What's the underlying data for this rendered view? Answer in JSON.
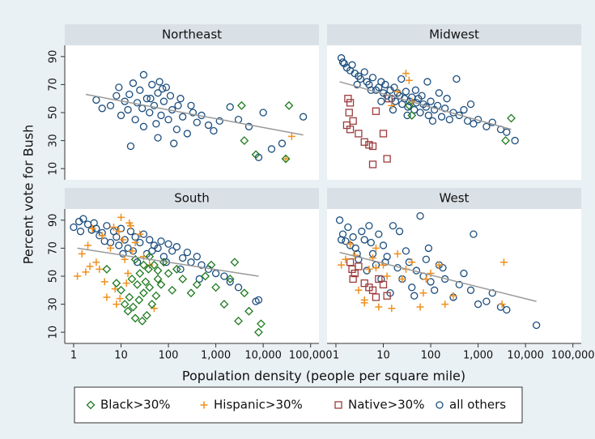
{
  "chart_data": {
    "type": "scatter",
    "ylabel": "Percent vote for Bush",
    "xlabel": "Population density (people per square mile)",
    "log_x": true,
    "xlim": [
      0.65,
      150000
    ],
    "xticks": [
      1,
      10,
      100,
      {
        "value": 1000,
        "label": "1,000"
      },
      {
        "value": 10000,
        "label": "10,000"
      },
      {
        "value": 100000,
        "label": "100,000"
      }
    ],
    "ylim": [
      2,
      98
    ],
    "yticks": [
      10,
      30,
      50,
      70,
      90
    ],
    "fit_color": "#999999",
    "series": [
      {
        "name": "Black>30%",
        "color": "#1e7a1e",
        "marker": "diamond"
      },
      {
        "name": "Hispanic>30%",
        "color": "#f0901e",
        "marker": "plus"
      },
      {
        "name": "Native>30%",
        "color": "#9c3b3b",
        "marker": "square"
      },
      {
        "name": "all others",
        "color": "#1c4e7e",
        "marker": "circle"
      }
    ],
    "panels": [
      {
        "title": "Northeast",
        "series": [
          {
            "x": [
              3500,
              4000,
              7000,
              35000,
              30000
            ],
            "y": [
              55,
              30,
              20,
              55,
              17
            ]
          },
          {
            "x": [
              40000,
              30000
            ],
            "y": [
              33,
              17
            ]
          },
          {
            "x": [],
            "y": []
          },
          {
            "x": [
              3,
              4,
              6,
              8,
              9,
              10,
              12,
              14,
              15,
              18,
              20,
              22,
              25,
              30,
              35,
              40,
              45,
              50,
              55,
              60,
              70,
              80,
              90,
              100,
              120,
              150,
              180,
              200,
              250,
              300,
              400,
              500,
              700,
              900,
              1200,
              2000,
              3000,
              8000,
              15000,
              25000,
              70000,
              10000,
              5000,
              60,
              130,
              30,
              28,
              65,
              110,
              75,
              16,
              42,
              160,
              330
            ],
            "y": [
              59,
              53,
              55,
              62,
              68,
              48,
              58,
              52,
              63,
              71,
              45,
              57,
              66,
              77,
              60,
              50,
              70,
              55,
              42,
              64,
              48,
              58,
              68,
              45,
              52,
              38,
              60,
              47,
              35,
              55,
              43,
              48,
              41,
              37,
              44,
              54,
              45,
              18,
              24,
              28,
              47,
              50,
              40,
              32,
              28,
              40,
              53,
              72,
              62,
              67,
              26,
              60,
              55,
              50
            ]
          }
        ],
        "fit": {
          "x": [
            1.8,
            70000
          ],
          "y": [
            63,
            34
          ]
        }
      },
      {
        "title": "Midwest",
        "series": [
          {
            "x": [
              35,
              40,
              5000,
              3800
            ],
            "y": [
              55,
              48,
              46,
              30
            ]
          },
          {
            "x": [
              30,
              35,
              20,
              15,
              40
            ],
            "y": [
              78,
              73,
              65,
              55,
              58
            ]
          },
          {
            "x": [
              1.8,
              2,
              1.9,
              2.3,
              1.7,
              2,
              3,
              4,
              5,
              6,
              6,
              12,
              10,
              13,
              7
            ],
            "y": [
              60,
              57,
              50,
              44,
              41,
              38,
              35,
              29,
              27,
              26,
              13,
              17,
              35,
              60,
              51
            ]
          },
          {
            "x": [
              1.3,
              1.5,
              1.7,
              2,
              2.2,
              2.5,
              3,
              3.3,
              4,
              4.5,
              5,
              6,
              7,
              8,
              9,
              10,
              11,
              12,
              14,
              15,
              17,
              18,
              20,
              22,
              25,
              28,
              30,
              33,
              36,
              40,
              45,
              50,
              55,
              60,
              70,
              80,
              90,
              100,
              120,
              140,
              170,
              200,
              250,
              300,
              400,
              500,
              600,
              800,
              1000,
              1500,
              2000,
              3000,
              4000,
              6000,
              1.4,
              2.8,
              5.5,
              9,
              16,
              24,
              32,
              48,
              65,
              85,
              110,
              150,
              220,
              350,
              700
            ],
            "y": [
              89,
              85,
              82,
              80,
              84,
              78,
              76,
              74,
              79,
              72,
              70,
              75,
              66,
              68,
              72,
              64,
              70,
              62,
              66,
              60,
              68,
              58,
              64,
              62,
              56,
              60,
              65,
              54,
              58,
              61,
              52,
              57,
              60,
              50,
              56,
              54,
              48,
              58,
              52,
              55,
              47,
              53,
              45,
              50,
              48,
              52,
              44,
              42,
              45,
              40,
              43,
              38,
              36,
              30,
              86,
              70,
              66,
              58,
              52,
              74,
              48,
              66,
              62,
              72,
              44,
              64,
              60,
              74,
              56
            ]
          }
        ],
        "fit": {
          "x": [
            1.2,
            5000
          ],
          "y": [
            72,
            38
          ]
        }
      },
      {
        "title": "South",
        "series": [
          {
            "x": [
              5,
              8,
              10,
              12,
              14,
              15,
              17,
              18,
              20,
              22,
              24,
              25,
              28,
              30,
              33,
              35,
              38,
              40,
              45,
              50,
              55,
              60,
              70,
              80,
              100,
              120,
              150,
              200,
              300,
              400,
              600,
              800,
              1000,
              1500,
              2000,
              2500,
              3000,
              4000,
              5000,
              8000,
              9000,
              20,
              30,
              40,
              60
            ],
            "y": [
              55,
              45,
              40,
              30,
              25,
              35,
              48,
              28,
              20,
              44,
              33,
              52,
              18,
              38,
              46,
              22,
              55,
              42,
              30,
              58,
              36,
              48,
              44,
              60,
              52,
              40,
              55,
              48,
              38,
              44,
              50,
              58,
              42,
              30,
              48,
              60,
              18,
              38,
              25,
              10,
              16,
              62,
              58,
              64,
              54
            ]
          },
          {
            "x": [
              1.2,
              1.5,
              2,
              2.5,
              3,
              3.5,
              4,
              5,
              6,
              7,
              8,
              9,
              10,
              11,
              12,
              13,
              15,
              17,
              20,
              25,
              30,
              40,
              50,
              4.5,
              9.5,
              14,
              2.2,
              1.8,
              7.5,
              16
            ],
            "y": [
              50,
              66,
              72,
              84,
              60,
              55,
              79,
              35,
              70,
              85,
              30,
              82,
              92,
              76,
              62,
              45,
              88,
              68,
              74,
              80,
              64,
              58,
              27,
              46,
              34,
              52,
              57,
              53,
              41,
              86
            ]
          },
          {
            "x": [],
            "y": []
          },
          {
            "x": [
              1,
              1.3,
              1.6,
              2,
              2.4,
              3,
              3.5,
              4,
              5,
              6,
              7,
              8,
              9,
              10,
              12,
              14,
              16,
              18,
              20,
              25,
              30,
              35,
              40,
              50,
              60,
              70,
              80,
              100,
              120,
              150,
              200,
              250,
              300,
              400,
              500,
              700,
              1000,
              1500,
              2000,
              3000,
              7000,
              8000,
              1.4,
              2.7,
              4.5,
              11,
              22,
              45,
              90,
              180,
              450
            ],
            "y": [
              85,
              89,
              91,
              87,
              83,
              84,
              79,
              81,
              86,
              74,
              82,
              78,
              72,
              84,
              76,
              70,
              82,
              68,
              78,
              74,
              80,
              66,
              76,
              72,
              70,
              75,
              64,
              73,
              68,
              71,
              63,
              67,
              60,
              64,
              58,
              55,
              52,
              50,
              46,
              42,
              32,
              33,
              82,
              88,
              75,
              66,
              60,
              68,
              60,
              55,
              48
            ]
          }
        ],
        "fit": {
          "x": [
            1.2,
            8000
          ],
          "y": [
            70,
            50
          ]
        }
      },
      {
        "title": "West",
        "series": [
          {
            "x": [],
            "y": []
          },
          {
            "x": [
              1.3,
              1.6,
              2,
              2.5,
              3,
              4,
              5,
              6,
              7,
              8,
              10,
              12,
              15,
              20,
              25,
              30,
              40,
              60,
              80,
              100,
              150,
              200,
              300,
              3500,
              3200,
              4,
              7,
              70
            ],
            "y": [
              58,
              62,
              73,
              65,
              40,
              33,
              55,
              63,
              70,
              28,
              58,
              50,
              27,
              66,
              48,
              55,
              60,
              28,
              48,
              52,
              58,
              30,
              36,
              60,
              30,
              31,
              56,
              38
            ]
          },
          {
            "x": [
              2,
              2.2,
              2.5,
              2.3,
              3,
              4,
              5,
              6,
              7,
              8,
              10,
              12
            ],
            "y": [
              60,
              55,
              52,
              48,
              57,
              45,
              42,
              40,
              35,
              48,
              44,
              36
            ]
          },
          {
            "x": [
              1.2,
              1.4,
              1.6,
              1.8,
              2,
              2.3,
              2.6,
              3,
              3.5,
              4,
              4.5,
              5,
              6,
              7,
              8,
              9,
              10,
              12,
              14,
              16,
              20,
              25,
              30,
              35,
              40,
              50,
              60,
              70,
              80,
              100,
              120,
              150,
              200,
              300,
              400,
              500,
              700,
              800,
              1000,
              1500,
              2000,
              3000,
              4000,
              17000,
              1.3,
              2.8,
              5.5,
              11,
              22,
              45,
              90,
              180
            ],
            "y": [
              90,
              80,
              75,
              85,
              72,
              78,
              70,
              62,
              82,
              76,
              54,
              86,
              66,
              58,
              80,
              48,
              72,
              64,
              38,
              86,
              56,
              48,
              68,
              60,
              42,
              54,
              93,
              50,
              62,
              46,
              40,
              58,
              48,
              35,
              44,
              52,
              40,
              80,
              30,
              32,
              38,
              28,
              26,
              15,
              76,
              66,
              74,
              60,
              82,
              36,
              70,
              56
            ]
          }
        ],
        "fit": {
          "x": [
            1.2,
            17000
          ],
          "y": [
            67,
            32
          ]
        }
      }
    ]
  }
}
